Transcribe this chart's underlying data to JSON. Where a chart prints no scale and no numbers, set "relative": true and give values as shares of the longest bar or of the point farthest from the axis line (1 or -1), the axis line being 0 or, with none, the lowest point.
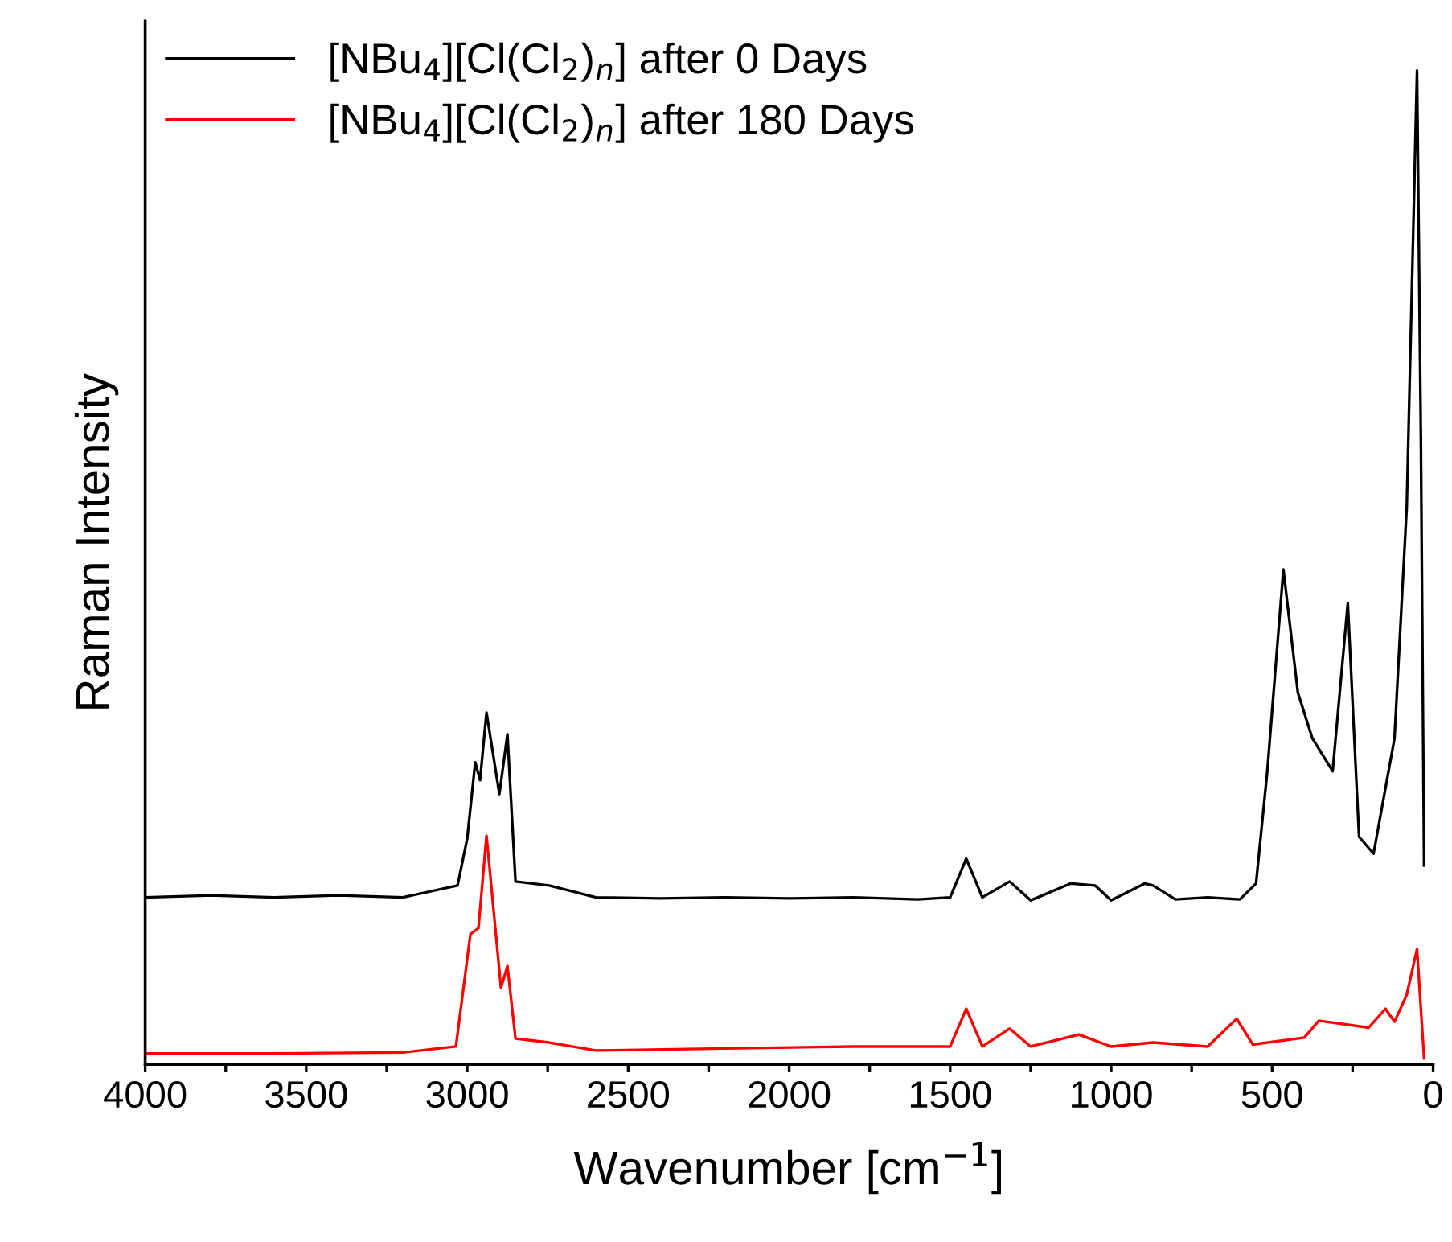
{
  "chart_data": {
    "type": "line",
    "relative": true,
    "xlabel": "Wavenumber [cm$^{−1}$]",
    "ylabel": "Raman Intensity",
    "xlim": [
      4000,
      0
    ],
    "xticks": [
      4000,
      {
        "value": 3750,
        "label": null
      },
      3500,
      {
        "value": 3250,
        "label": null
      },
      3000,
      {
        "value": 2750,
        "label": null
      },
      2500,
      {
        "value": 2250,
        "label": null
      },
      2000,
      {
        "value": 1750,
        "label": null
      },
      1500,
      {
        "value": 1250,
        "label": null
      },
      1000,
      {
        "value": 750,
        "label": null
      },
      500,
      {
        "value": 250,
        "label": null
      },
      0
    ],
    "legend": "top left",
    "grid": false,
    "tick_labels": "x",
    "series": [
      {
        "name": "[NBu$_{4}$][Cl(Cl$_{2}$)$_{n}$] after 0 Days",
        "color": "#000000",
        "x": [
          4000,
          3800,
          3600,
          3400,
          3200,
          3030,
          3000,
          2975,
          2960,
          2940,
          2900,
          2875,
          2850,
          2745,
          2600,
          2400,
          2200,
          2000,
          1800,
          1600,
          1500,
          1450,
          1400,
          1315,
          1250,
          1125,
          1050,
          1000,
          895,
          870,
          800,
          700,
          600,
          550,
          515,
          465,
          420,
          375,
          312,
          265,
          230,
          185,
          120,
          82,
          50,
          38,
          28
        ],
        "values": [
          0.168,
          0.17,
          0.168,
          0.17,
          0.168,
          0.18,
          0.227,
          0.304,
          0.286,
          0.354,
          0.272,
          0.332,
          0.184,
          0.18,
          0.168,
          0.167,
          0.168,
          0.167,
          0.168,
          0.166,
          0.168,
          0.207,
          0.168,
          0.184,
          0.165,
          0.182,
          0.18,
          0.165,
          0.182,
          0.18,
          0.166,
          0.168,
          0.166,
          0.182,
          0.295,
          0.498,
          0.374,
          0.328,
          0.295,
          0.464,
          0.229,
          0.212,
          0.328,
          0.56,
          1,
          0.63,
          0.2
        ]
      },
      {
        "name": "[NBu$_{4}$][Cl(Cl$_{2}$)$_{n}$] after 180 Days",
        "color": "#ff0000",
        "x": [
          4000,
          3600,
          3200,
          3035,
          2990,
          2965,
          2940,
          2895,
          2875,
          2850,
          2745,
          2600,
          2200,
          1800,
          1500,
          1450,
          1400,
          1315,
          1250,
          1100,
          1000,
          870,
          700,
          610,
          560,
          400,
          355,
          200,
          148,
          120,
          82,
          50,
          28
        ],
        "values": [
          0.011,
          0.011,
          0.012,
          0.018,
          0.131,
          0.137,
          0.23,
          0.077,
          0.099,
          0.026,
          0.022,
          0.014,
          0.016,
          0.018,
          0.018,
          0.056,
          0.018,
          0.036,
          0.018,
          0.03,
          0.018,
          0.022,
          0.018,
          0.046,
          0.02,
          0.027,
          0.044,
          0.037,
          0.056,
          0.043,
          0.07,
          0.116,
          0.006
        ]
      }
    ]
  }
}
